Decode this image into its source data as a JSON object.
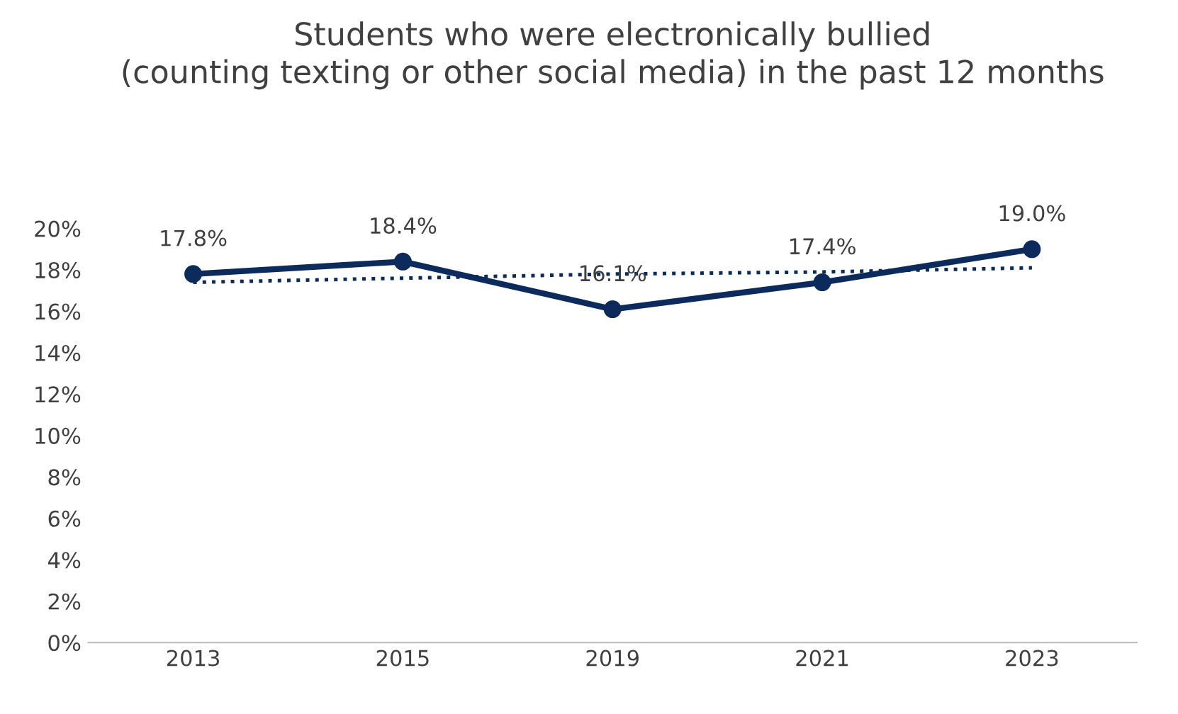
{
  "chart_data": {
    "type": "line",
    "title": "Students who were electronically bullied\n(counting texting or other social media) in the past 12 months",
    "categories": [
      "2013",
      "2015",
      "2019",
      "2021",
      "2023"
    ],
    "series": [
      {
        "color": "#0d2a5c",
        "values": [
          17.8,
          18.4,
          16.1,
          17.4,
          19.0
        ],
        "value_labels": [
          "17.8%",
          "18.4%",
          "16.1%",
          "17.4%",
          "19.0%"
        ],
        "marker": "circle",
        "line_style": "solid"
      },
      {
        "color": "#0d2a5c",
        "values": [
          17.4,
          17.6,
          17.8,
          17.9,
          18.1
        ],
        "marker": "none",
        "line_style": "dotted"
      }
    ],
    "ylim": [
      0,
      20
    ],
    "yticks": [
      {
        "value": 0,
        "label": "0%"
      },
      {
        "value": 2,
        "label": "2%"
      },
      {
        "value": 4,
        "label": "4%"
      },
      {
        "value": 6,
        "label": "6%"
      },
      {
        "value": 8,
        "label": "8%"
      },
      {
        "value": 10,
        "label": "10%"
      },
      {
        "value": 12,
        "label": "12%"
      },
      {
        "value": 14,
        "label": "14%"
      },
      {
        "value": 16,
        "label": "16%"
      },
      {
        "value": 18,
        "label": "18%"
      },
      {
        "value": 20,
        "label": "20%"
      }
    ],
    "grid": false,
    "legend": false
  }
}
